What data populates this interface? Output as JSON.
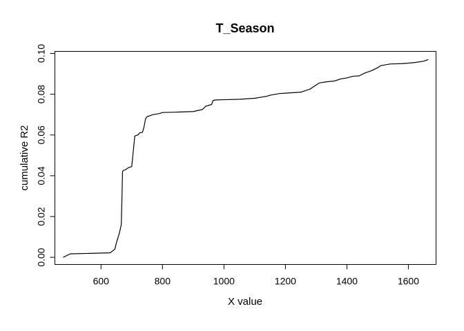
{
  "chart_data": {
    "type": "line",
    "title": "T_Season",
    "xlabel": "X value",
    "ylabel": "cumulative R2",
    "xlim": [
      450,
      1690
    ],
    "ylim": [
      -0.0035,
      0.101
    ],
    "x_ticks": [
      600,
      800,
      1000,
      1200,
      1400,
      1600
    ],
    "y_ticks": [
      0.0,
      0.02,
      0.04,
      0.06,
      0.08,
      0.1
    ],
    "x_tick_labels": [
      "600",
      "800",
      "1000",
      "1200",
      "1400",
      "1600"
    ],
    "y_tick_labels": [
      "0.00",
      "0.02",
      "0.04",
      "0.06",
      "0.08",
      "0.10"
    ],
    "grid": false,
    "series": [
      {
        "x": [
          477,
          500,
          630,
          645,
          650,
          660,
          666,
          668,
          670,
          672,
          680,
          690,
          700,
          705,
          710,
          720,
          725,
          735,
          740,
          745,
          750,
          760,
          765,
          770,
          790,
          800,
          900,
          930,
          940,
          960,
          965,
          975,
          1000,
          1050,
          1100,
          1140,
          1150,
          1180,
          1200,
          1250,
          1260,
          1280,
          1295,
          1310,
          1330,
          1360,
          1380,
          1400,
          1420,
          1440,
          1460,
          1480,
          1500,
          1510,
          1540,
          1580,
          1620,
          1650,
          1665
        ],
        "y": [
          0.0,
          0.0017,
          0.0022,
          0.004,
          0.007,
          0.012,
          0.016,
          0.028,
          0.042,
          0.0425,
          0.043,
          0.044,
          0.0445,
          0.052,
          0.0595,
          0.06,
          0.061,
          0.0613,
          0.064,
          0.068,
          0.069,
          0.0695,
          0.0698,
          0.07,
          0.0705,
          0.071,
          0.0715,
          0.0725,
          0.074,
          0.075,
          0.077,
          0.0772,
          0.0773,
          0.0775,
          0.078,
          0.079,
          0.0795,
          0.0803,
          0.0805,
          0.081,
          0.0815,
          0.0825,
          0.084,
          0.0855,
          0.086,
          0.0865,
          0.0875,
          0.088,
          0.0888,
          0.089,
          0.0905,
          0.0915,
          0.093,
          0.094,
          0.0948,
          0.095,
          0.0955,
          0.0962,
          0.097
        ]
      }
    ]
  }
}
